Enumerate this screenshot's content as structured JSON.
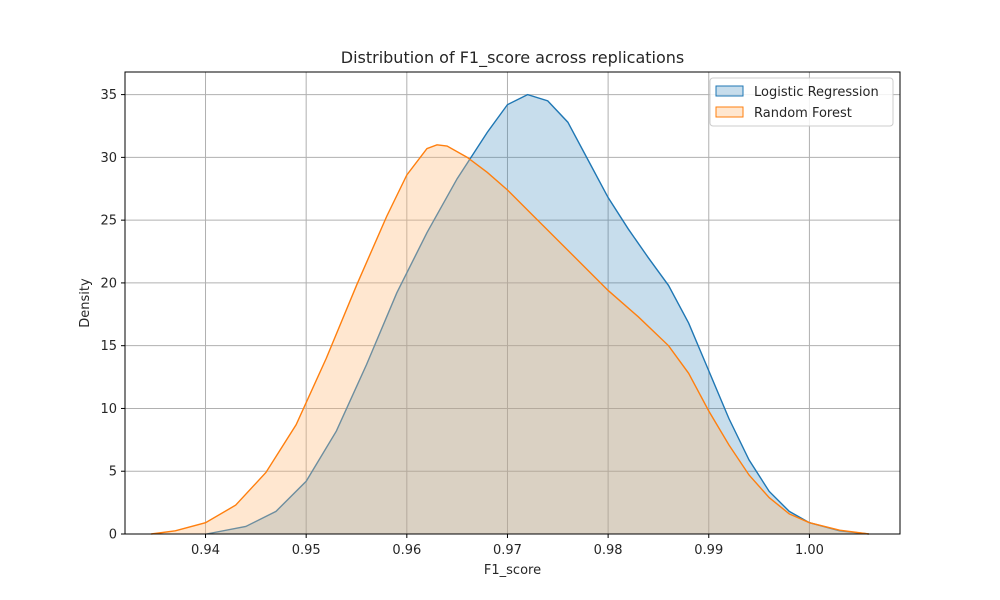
{
  "chart_data": {
    "type": "area",
    "title": "Distribution of F1_score across replications",
    "xlabel": "F1_score",
    "ylabel": "Density",
    "xlim": [
      0.932,
      1.009
    ],
    "ylim": [
      0,
      36.8
    ],
    "xticks": [
      0.94,
      0.95,
      0.96,
      0.97,
      0.98,
      0.99,
      1.0
    ],
    "xtick_labels": [
      "0.94",
      "0.95",
      "0.96",
      "0.97",
      "0.98",
      "0.99",
      "1.00"
    ],
    "yticks": [
      0,
      5,
      10,
      15,
      20,
      25,
      30,
      35
    ],
    "ytick_labels": [
      "0",
      "5",
      "10",
      "15",
      "20",
      "25",
      "30",
      "35"
    ],
    "grid": true,
    "legend_position": "top-right",
    "series": [
      {
        "name": "Logistic Regression",
        "color": "#1f77b4",
        "fill": "#1f77b4",
        "points": [
          [
            0.9401,
            0
          ],
          [
            0.944,
            0.6
          ],
          [
            0.947,
            1.8
          ],
          [
            0.95,
            4.2
          ],
          [
            0.953,
            8.2
          ],
          [
            0.956,
            13.5
          ],
          [
            0.959,
            19.2
          ],
          [
            0.962,
            24.0
          ],
          [
            0.965,
            28.3
          ],
          [
            0.968,
            32.0
          ],
          [
            0.97,
            34.2
          ],
          [
            0.972,
            35.0
          ],
          [
            0.974,
            34.5
          ],
          [
            0.976,
            32.8
          ],
          [
            0.978,
            29.8
          ],
          [
            0.98,
            26.8
          ],
          [
            0.982,
            24.3
          ],
          [
            0.984,
            22.0
          ],
          [
            0.986,
            19.8
          ],
          [
            0.988,
            16.8
          ],
          [
            0.99,
            13.0
          ],
          [
            0.992,
            9.2
          ],
          [
            0.994,
            5.9
          ],
          [
            0.996,
            3.4
          ],
          [
            0.998,
            1.8
          ],
          [
            1.0,
            0.9
          ],
          [
            1.003,
            0.25
          ],
          [
            1.0059,
            0
          ]
        ]
      },
      {
        "name": "Random Forest",
        "color": "#ff7f0e",
        "fill": "#ffbb78",
        "points": [
          [
            0.9346,
            0
          ],
          [
            0.937,
            0.25
          ],
          [
            0.94,
            0.9
          ],
          [
            0.943,
            2.3
          ],
          [
            0.946,
            4.9
          ],
          [
            0.949,
            8.7
          ],
          [
            0.952,
            14.0
          ],
          [
            0.955,
            19.8
          ],
          [
            0.958,
            25.3
          ],
          [
            0.96,
            28.6
          ],
          [
            0.962,
            30.7
          ],
          [
            0.963,
            31.0
          ],
          [
            0.964,
            30.9
          ],
          [
            0.966,
            30.0
          ],
          [
            0.968,
            28.8
          ],
          [
            0.97,
            27.4
          ],
          [
            0.972,
            25.8
          ],
          [
            0.975,
            23.4
          ],
          [
            0.978,
            21.0
          ],
          [
            0.98,
            19.4
          ],
          [
            0.983,
            17.3
          ],
          [
            0.986,
            15.0
          ],
          [
            0.988,
            12.8
          ],
          [
            0.99,
            9.8
          ],
          [
            0.992,
            7.1
          ],
          [
            0.994,
            4.7
          ],
          [
            0.996,
            2.9
          ],
          [
            0.998,
            1.6
          ],
          [
            1.0,
            0.9
          ],
          [
            1.003,
            0.3
          ],
          [
            1.0059,
            0
          ]
        ]
      }
    ]
  }
}
